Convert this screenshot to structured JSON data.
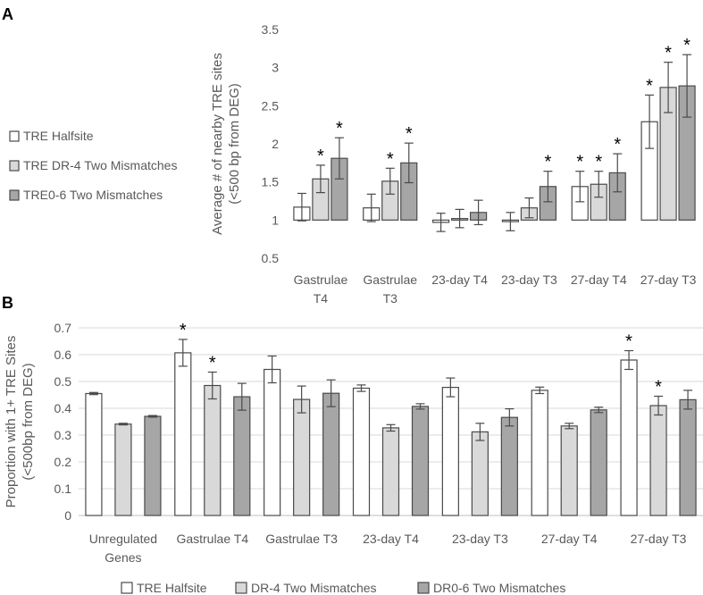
{
  "panels": {
    "a_label": "A",
    "b_label": "B"
  },
  "legend_a": {
    "items": [
      "TRE Halfsite",
      "TRE DR-4 Two Mismatches",
      "TRE0-6 Two Mismatches"
    ]
  },
  "legend_b": {
    "items": [
      "TRE Halfsite",
      "DR-4 Two Mismatches",
      "DR0-6 Two Mismatches"
    ]
  },
  "colors": {
    "series": [
      "#ffffff",
      "#d9d9d9",
      "#a6a6a6"
    ],
    "stroke": "#4a4a4a",
    "axis_text": "#595959",
    "grid": "#d9d9d9"
  },
  "chart_data": [
    {
      "type": "bar",
      "panel": "A",
      "title": "",
      "xlabel": "",
      "ylabel_lines": [
        "Average # of nearby TRE sites",
        "(<500 bp from DEG)"
      ],
      "ylim": [
        0.5,
        3.5
      ],
      "yticks": [
        "0.5",
        "1",
        "1.5",
        "2",
        "2.5",
        "3",
        "3.5"
      ],
      "ytick_values": [
        0.5,
        1,
        1.5,
        2,
        2.5,
        3,
        3.5
      ],
      "baseline": 1,
      "grid": false,
      "legend_position": "left",
      "categories": [
        [
          "Gastrulae",
          "T4"
        ],
        [
          "Gastrulae",
          "T3"
        ],
        [
          "23-day T4"
        ],
        [
          "23-day T3"
        ],
        [
          "27-day T4"
        ],
        [
          "27-day T3"
        ]
      ],
      "series": [
        {
          "name": "TRE Halfsite",
          "values": [
            1.17,
            1.16,
            0.97,
            0.98,
            1.44,
            2.29
          ],
          "err": [
            0.18,
            0.18,
            0.12,
            0.12,
            0.2,
            0.35
          ],
          "sig": [
            false,
            false,
            false,
            false,
            true,
            true
          ]
        },
        {
          "name": "TRE DR-4 Two Mismatches",
          "values": [
            1.54,
            1.51,
            1.02,
            1.16,
            1.47,
            2.74
          ],
          "err": [
            0.18,
            0.17,
            0.12,
            0.13,
            0.17,
            0.33
          ],
          "sig": [
            true,
            true,
            false,
            false,
            true,
            true
          ]
        },
        {
          "name": "TRE0-6 Two Mismatches",
          "values": [
            1.81,
            1.75,
            1.1,
            1.44,
            1.62,
            2.76
          ],
          "err": [
            0.27,
            0.26,
            0.16,
            0.2,
            0.25,
            0.41
          ],
          "sig": [
            true,
            true,
            false,
            true,
            true,
            true
          ]
        }
      ],
      "sig_marker": "*"
    },
    {
      "type": "bar",
      "panel": "B",
      "title": "",
      "xlabel": "",
      "ylabel_lines": [
        "Proportion with 1+ TRE Sites",
        "(<500bp from DEG)"
      ],
      "ylim": [
        0,
        0.7
      ],
      "yticks": [
        "0",
        "0.1",
        "0.2",
        "0.3",
        "0.4",
        "0.5",
        "0.6",
        "0.7"
      ],
      "ytick_values": [
        0,
        0.1,
        0.2,
        0.3,
        0.4,
        0.5,
        0.6,
        0.7
      ],
      "baseline": 0,
      "grid": true,
      "legend_position": "bottom",
      "categories": [
        [
          "Unregulated",
          "Genes"
        ],
        [
          "Gastrulae T4"
        ],
        [
          "Gastrulae T3"
        ],
        [
          "23-day T4"
        ],
        [
          "23-day T3"
        ],
        [
          "27-day T4"
        ],
        [
          "27-day T3"
        ]
      ],
      "series": [
        {
          "name": "TRE Halfsite",
          "values": [
            0.455,
            0.607,
            0.545,
            0.475,
            0.478,
            0.467,
            0.58
          ],
          "err": [
            0.004,
            0.05,
            0.05,
            0.012,
            0.035,
            0.012,
            0.035
          ],
          "sig": [
            false,
            true,
            false,
            false,
            false,
            false,
            true
          ]
        },
        {
          "name": "DR-4 Two Mismatches",
          "values": [
            0.341,
            0.485,
            0.433,
            0.327,
            0.312,
            0.334,
            0.41
          ],
          "err": [
            0.003,
            0.05,
            0.05,
            0.012,
            0.032,
            0.01,
            0.035
          ],
          "sig": [
            false,
            true,
            false,
            false,
            false,
            false,
            true
          ]
        },
        {
          "name": "DR0-6 Two Mismatches",
          "values": [
            0.37,
            0.443,
            0.456,
            0.407,
            0.366,
            0.394,
            0.432
          ],
          "err": [
            0.003,
            0.05,
            0.05,
            0.01,
            0.032,
            0.01,
            0.035
          ],
          "sig": [
            false,
            false,
            false,
            false,
            false,
            false,
            false
          ]
        }
      ],
      "sig_marker": "*"
    }
  ]
}
